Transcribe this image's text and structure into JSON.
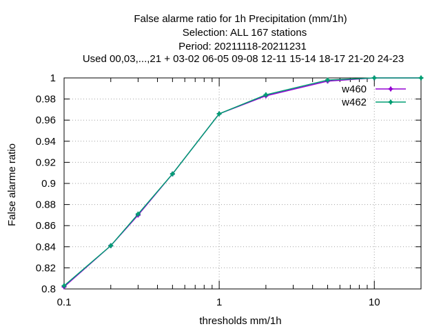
{
  "chart_data": {
    "type": "line",
    "title_lines": [
      "False alarme ratio  for 1h Precipitation (mm/1h)",
      "Selection: ALL     167 stations",
      "Period: 20211118-20211231",
      "Used  00,03,...,21  + 03-02 06-05 09-08 12-11 15-14 18-17 21-20 24-23"
    ],
    "xlabel": "thresholds mm/1h",
    "ylabel": "False alarme ratio",
    "x_scale": "log",
    "xlim": [
      0.1,
      20
    ],
    "ylim": [
      0.8,
      1.0
    ],
    "x_ticks": [
      {
        "value": 0.1,
        "label": "0.1"
      },
      {
        "value": 1,
        "label": "1"
      },
      {
        "value": 10,
        "label": "10"
      }
    ],
    "x_minor_ticks": [
      0.2,
      0.3,
      0.4,
      0.5,
      0.6,
      0.7,
      0.8,
      0.9,
      2,
      3,
      4,
      5,
      6,
      7,
      8,
      9,
      20
    ],
    "y_ticks": [
      {
        "value": 0.8,
        "label": "0.8"
      },
      {
        "value": 0.82,
        "label": "0.82"
      },
      {
        "value": 0.84,
        "label": "0.84"
      },
      {
        "value": 0.86,
        "label": "0.86"
      },
      {
        "value": 0.88,
        "label": "0.88"
      },
      {
        "value": 0.9,
        "label": "0.9"
      },
      {
        "value": 0.92,
        "label": "0.92"
      },
      {
        "value": 0.94,
        "label": "0.94"
      },
      {
        "value": 0.96,
        "label": "0.96"
      },
      {
        "value": 0.98,
        "label": "0.98"
      },
      {
        "value": 1,
        "label": "1"
      }
    ],
    "grid": true,
    "legend_position": "top-right",
    "x": [
      0.1,
      0.2,
      0.3,
      0.5,
      1,
      2,
      5,
      10,
      20
    ],
    "series": [
      {
        "name": "w460",
        "color": "#9400d3",
        "values": [
          0.802,
          0.841,
          0.87,
          0.909,
          0.966,
          0.983,
          0.997,
          1.0,
          1.0
        ]
      },
      {
        "name": "w462",
        "color": "#009e73",
        "values": [
          0.803,
          0.841,
          0.871,
          0.909,
          0.966,
          0.984,
          0.998,
          1.0,
          1.0
        ]
      }
    ]
  }
}
